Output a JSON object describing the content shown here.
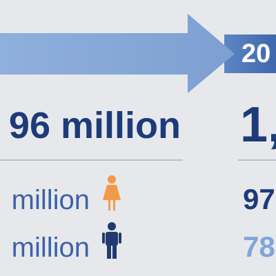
{
  "header": {
    "year": "20"
  },
  "rows": [
    {
      "before": "96 million",
      "after": "1,"
    },
    {
      "before": "million",
      "after": "97"
    },
    {
      "before": "million",
      "after": "78"
    }
  ]
}
